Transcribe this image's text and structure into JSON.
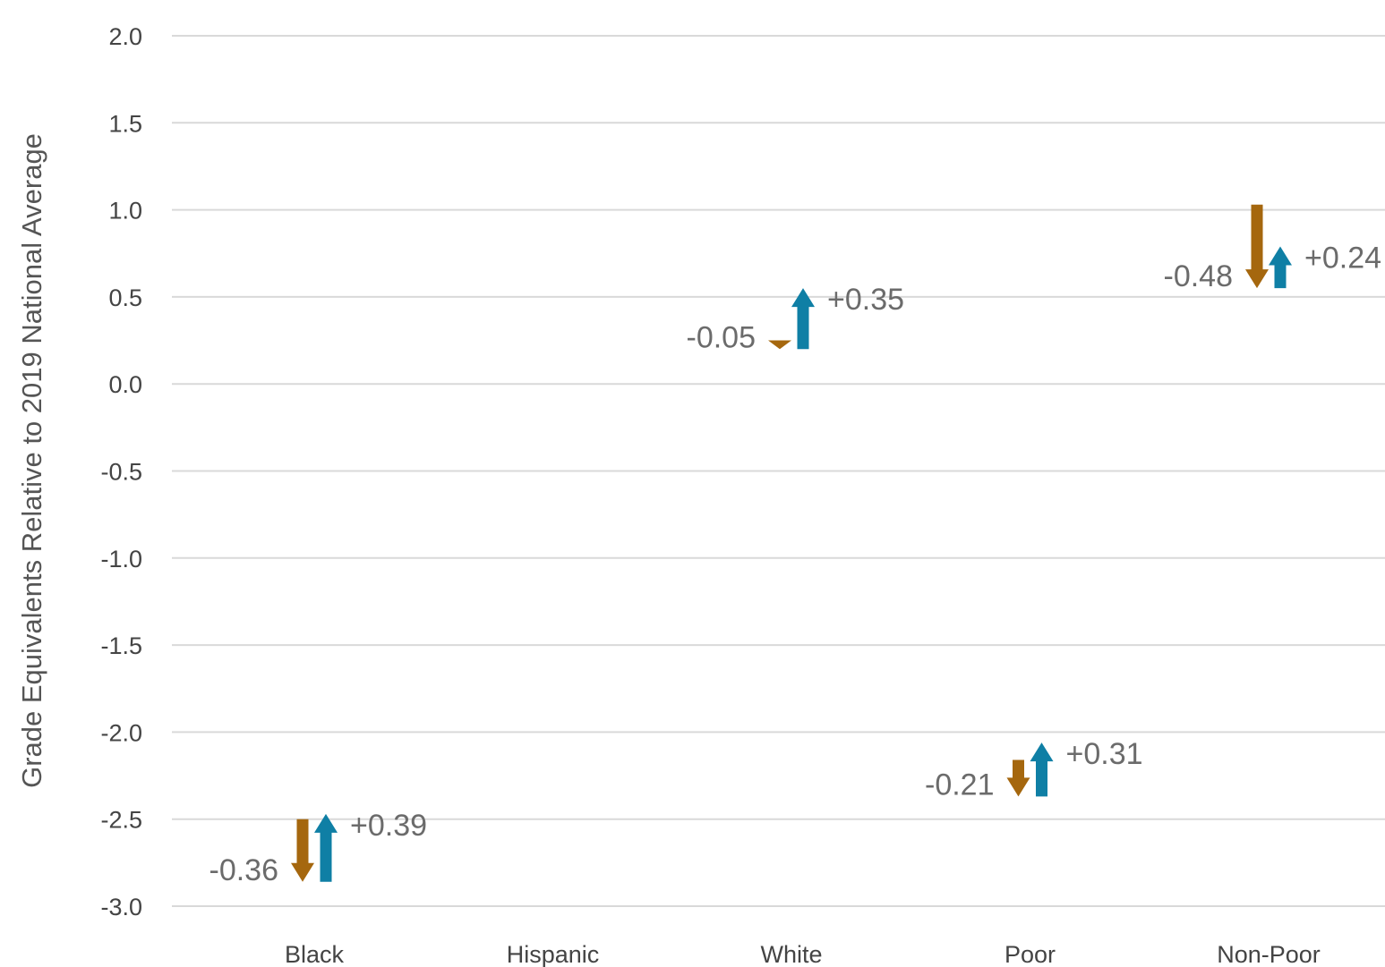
{
  "chart_data": {
    "type": "arrow-range",
    "ylabel": "Grade Equivalents Relative to 2019 National Average",
    "ylim": [
      -3.0,
      2.0
    ],
    "yticks": [
      2.0,
      1.5,
      1.0,
      0.5,
      0.0,
      -0.5,
      -1.0,
      -1.5,
      -2.0,
      -2.5,
      -3.0
    ],
    "ytick_labels": [
      "2.0",
      "1.5",
      "1.0",
      "0.5",
      "0.0",
      "-0.5",
      "-1.0",
      "-1.5",
      "-2.0",
      "-2.5",
      "-3.0"
    ],
    "grid": true,
    "categories": [
      "Black",
      "Hispanic",
      "White",
      "Poor",
      "Non-Poor"
    ],
    "series": [
      {
        "color": "#a5670e",
        "direction": "down",
        "points": [
          {
            "category": "Black",
            "start": -2.5,
            "end": -2.86,
            "label": "-0.36"
          },
          {
            "category": "White",
            "start": 0.25,
            "end": 0.2,
            "label": "-0.05"
          },
          {
            "category": "Poor",
            "start": -2.16,
            "end": -2.37,
            "label": "-0.21"
          },
          {
            "category": "Non-Poor",
            "start": 1.03,
            "end": 0.55,
            "label": "-0.48"
          }
        ]
      },
      {
        "color": "#0f7fa5",
        "direction": "up",
        "points": [
          {
            "category": "Black",
            "start": -2.86,
            "end": -2.47,
            "label": "+0.39"
          },
          {
            "category": "White",
            "start": 0.2,
            "end": 0.55,
            "label": "+0.35"
          },
          {
            "category": "Poor",
            "start": -2.37,
            "end": -2.06,
            "label": "+0.31"
          },
          {
            "category": "Non-Poor",
            "start": 0.55,
            "end": 0.79,
            "label": "+0.24"
          }
        ]
      }
    ]
  }
}
